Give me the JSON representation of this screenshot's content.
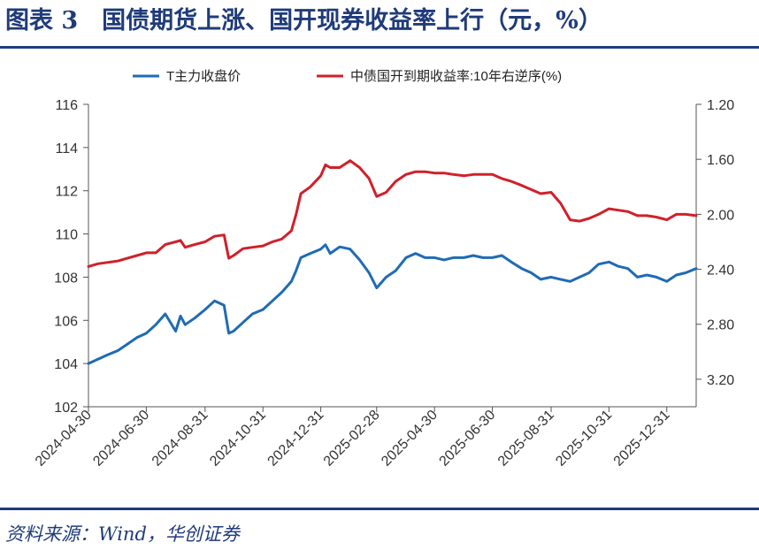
{
  "figure": {
    "title": "图表 3　国债期货上涨、国开现券收益率上行（元，%）",
    "source": "资料来源：Wind，华创证券"
  },
  "chart_data": {
    "type": "line",
    "title": "国债期货上涨、国开现券收益率上行（元，%）",
    "legend_position": "top",
    "x_ticks": [
      "2024-04-30",
      "2024-06-30",
      "2024-08-31",
      "2024-10-31",
      "2024-12-31",
      "2025-02-28",
      "2025-04-30",
      "2025-06-30",
      "2025-08-31",
      "2025-10-31",
      "2025-12-31"
    ],
    "x_start": "2024-04-30",
    "x_end": "2026-01-31",
    "left_axis": {
      "ylim": [
        102,
        116
      ],
      "ticks": [
        "102",
        "104",
        "106",
        "108",
        "110",
        "112",
        "114",
        "116"
      ]
    },
    "right_axis": {
      "ylim": [
        1.2,
        3.4
      ],
      "inverted": true,
      "ticks": [
        "1.20",
        "1.60",
        "2.00",
        "2.40",
        "2.80",
        "3.20"
      ]
    },
    "series": [
      {
        "name": "T主力收盘价",
        "axis": "left",
        "color": "#1f6bb5",
        "dates": [
          "2024-04-30",
          "2024-05-10",
          "2024-05-20",
          "2024-05-31",
          "2024-06-10",
          "2024-06-20",
          "2024-06-30",
          "2024-07-10",
          "2024-07-20",
          "2024-07-31",
          "2024-08-05",
          "2024-08-10",
          "2024-08-20",
          "2024-08-31",
          "2024-09-10",
          "2024-09-20",
          "2024-09-25",
          "2024-09-30",
          "2024-10-10",
          "2024-10-20",
          "2024-10-31",
          "2024-11-10",
          "2024-11-20",
          "2024-11-30",
          "2024-12-05",
          "2024-12-10",
          "2024-12-20",
          "2024-12-31",
          "2025-01-05",
          "2025-01-10",
          "2025-01-20",
          "2025-01-31",
          "2025-02-10",
          "2025-02-20",
          "2025-02-28",
          "2025-03-10",
          "2025-03-20",
          "2025-03-31",
          "2025-04-10",
          "2025-04-20",
          "2025-04-30",
          "2025-05-10",
          "2025-05-20",
          "2025-05-31",
          "2025-06-10",
          "2025-06-20",
          "2025-06-30",
          "2025-07-10",
          "2025-07-20",
          "2025-07-31",
          "2025-08-10",
          "2025-08-20",
          "2025-08-31",
          "2025-09-10",
          "2025-09-20",
          "2025-09-30",
          "2025-10-10",
          "2025-10-20",
          "2025-10-31",
          "2025-11-10",
          "2025-11-20",
          "2025-11-30",
          "2025-12-10",
          "2025-12-20",
          "2025-12-31",
          "2026-01-10",
          "2026-01-20",
          "2026-01-31"
        ],
        "values": [
          104.0,
          104.2,
          104.4,
          104.6,
          104.9,
          105.2,
          105.4,
          105.8,
          106.3,
          105.5,
          106.2,
          105.8,
          106.1,
          106.5,
          106.9,
          106.7,
          105.4,
          105.5,
          105.9,
          106.3,
          106.5,
          106.9,
          107.3,
          107.8,
          108.3,
          108.9,
          109.1,
          109.3,
          109.5,
          109.1,
          109.4,
          109.3,
          108.8,
          108.2,
          107.5,
          108.0,
          108.3,
          108.9,
          109.1,
          108.9,
          108.9,
          108.8,
          108.9,
          108.9,
          109.0,
          108.9,
          108.9,
          109.0,
          108.7,
          108.4,
          108.2,
          107.9,
          108.0,
          107.9,
          107.8,
          108.0,
          108.2,
          108.6,
          108.7,
          108.5,
          108.4,
          108.0,
          108.1,
          108.0,
          107.8,
          108.1,
          108.2,
          108.4
        ]
      },
      {
        "name": "中债国开到期收益率:10年右逆序(%)",
        "axis": "right",
        "color": "#d0202a",
        "dates": [
          "2024-04-30",
          "2024-05-10",
          "2024-05-20",
          "2024-05-31",
          "2024-06-10",
          "2024-06-20",
          "2024-06-30",
          "2024-07-10",
          "2024-07-20",
          "2024-07-31",
          "2024-08-05",
          "2024-08-10",
          "2024-08-20",
          "2024-08-31",
          "2024-09-10",
          "2024-09-20",
          "2024-09-25",
          "2024-09-30",
          "2024-10-10",
          "2024-10-20",
          "2024-10-31",
          "2024-11-10",
          "2024-11-20",
          "2024-11-30",
          "2024-12-05",
          "2024-12-10",
          "2024-12-20",
          "2024-12-31",
          "2025-01-05",
          "2025-01-10",
          "2025-01-20",
          "2025-01-31",
          "2025-02-10",
          "2025-02-20",
          "2025-02-28",
          "2025-03-10",
          "2025-03-20",
          "2025-03-31",
          "2025-04-10",
          "2025-04-20",
          "2025-04-30",
          "2025-05-10",
          "2025-05-20",
          "2025-05-31",
          "2025-06-10",
          "2025-06-20",
          "2025-06-30",
          "2025-07-10",
          "2025-07-20",
          "2025-07-31",
          "2025-08-10",
          "2025-08-20",
          "2025-08-31",
          "2025-09-10",
          "2025-09-20",
          "2025-09-30",
          "2025-10-10",
          "2025-10-20",
          "2025-10-31",
          "2025-11-10",
          "2025-11-20",
          "2025-11-30",
          "2025-12-10",
          "2025-12-20",
          "2025-12-31",
          "2026-01-10",
          "2026-01-20",
          "2026-01-31"
        ],
        "values": [
          2.38,
          2.36,
          2.35,
          2.34,
          2.32,
          2.3,
          2.28,
          2.28,
          2.22,
          2.2,
          2.19,
          2.24,
          2.22,
          2.2,
          2.16,
          2.15,
          2.32,
          2.3,
          2.25,
          2.24,
          2.23,
          2.2,
          2.18,
          2.12,
          2.0,
          1.85,
          1.8,
          1.72,
          1.64,
          1.66,
          1.66,
          1.61,
          1.66,
          1.74,
          1.87,
          1.84,
          1.76,
          1.71,
          1.69,
          1.69,
          1.7,
          1.7,
          1.71,
          1.72,
          1.71,
          1.71,
          1.71,
          1.74,
          1.76,
          1.79,
          1.82,
          1.85,
          1.84,
          1.92,
          2.04,
          2.05,
          2.03,
          2.0,
          1.96,
          1.97,
          1.98,
          2.01,
          2.01,
          2.02,
          2.04,
          2.0,
          2.0,
          2.01
        ]
      }
    ]
  }
}
